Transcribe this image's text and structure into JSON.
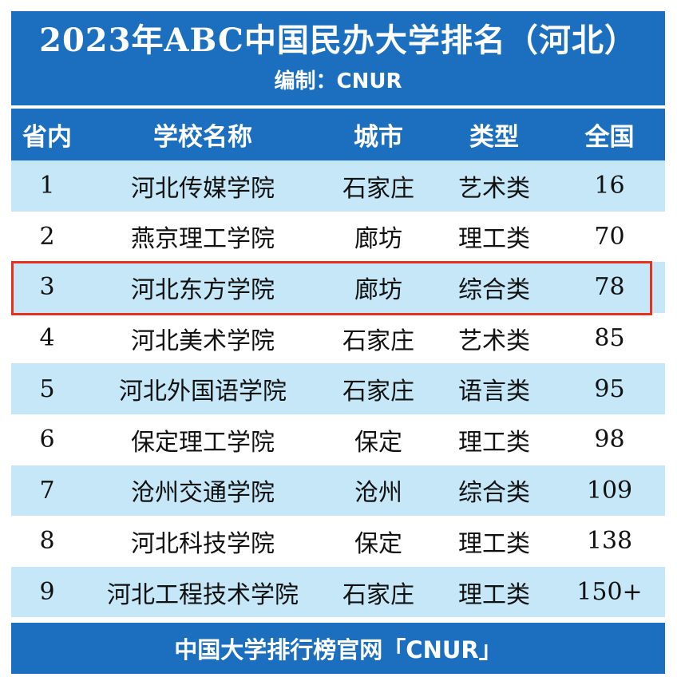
{
  "title": "2023年ABC中国民办大学排名（河北）",
  "subtitle": "编制：CNUR",
  "columns": {
    "rank": "省内",
    "name": "学校名称",
    "city": "城市",
    "type": "类型",
    "national": "全国"
  },
  "rows": [
    {
      "rank": "1",
      "name": "河北传媒学院",
      "city": "石家庄",
      "type": "艺术类",
      "national": "16"
    },
    {
      "rank": "2",
      "name": "燕京理工学院",
      "city": "廊坊",
      "type": "理工类",
      "national": "70"
    },
    {
      "rank": "3",
      "name": "河北东方学院",
      "city": "廊坊",
      "type": "综合类",
      "national": "78"
    },
    {
      "rank": "4",
      "name": "河北美术学院",
      "city": "石家庄",
      "type": "艺术类",
      "national": "85"
    },
    {
      "rank": "5",
      "name": "河北外国语学院",
      "city": "石家庄",
      "type": "语言类",
      "national": "95"
    },
    {
      "rank": "6",
      "name": "保定理工学院",
      "city": "保定",
      "type": "理工类",
      "national": "98"
    },
    {
      "rank": "7",
      "name": "沧州交通学院",
      "city": "沧州",
      "type": "综合类",
      "national": "109"
    },
    {
      "rank": "8",
      "name": "河北科技学院",
      "city": "保定",
      "type": "理工类",
      "national": "138"
    },
    {
      "rank": "9",
      "name": "河北工程技术学院",
      "city": "石家庄",
      "type": "理工类",
      "national": "150+"
    }
  ],
  "highlighted_row": "3",
  "footer": "中国大学排行榜官网「CNUR」",
  "colors": {
    "header_blue": "#1b6fbe",
    "stripe_blue": "#c5e7f7",
    "highlight_red": "#e8301e"
  }
}
